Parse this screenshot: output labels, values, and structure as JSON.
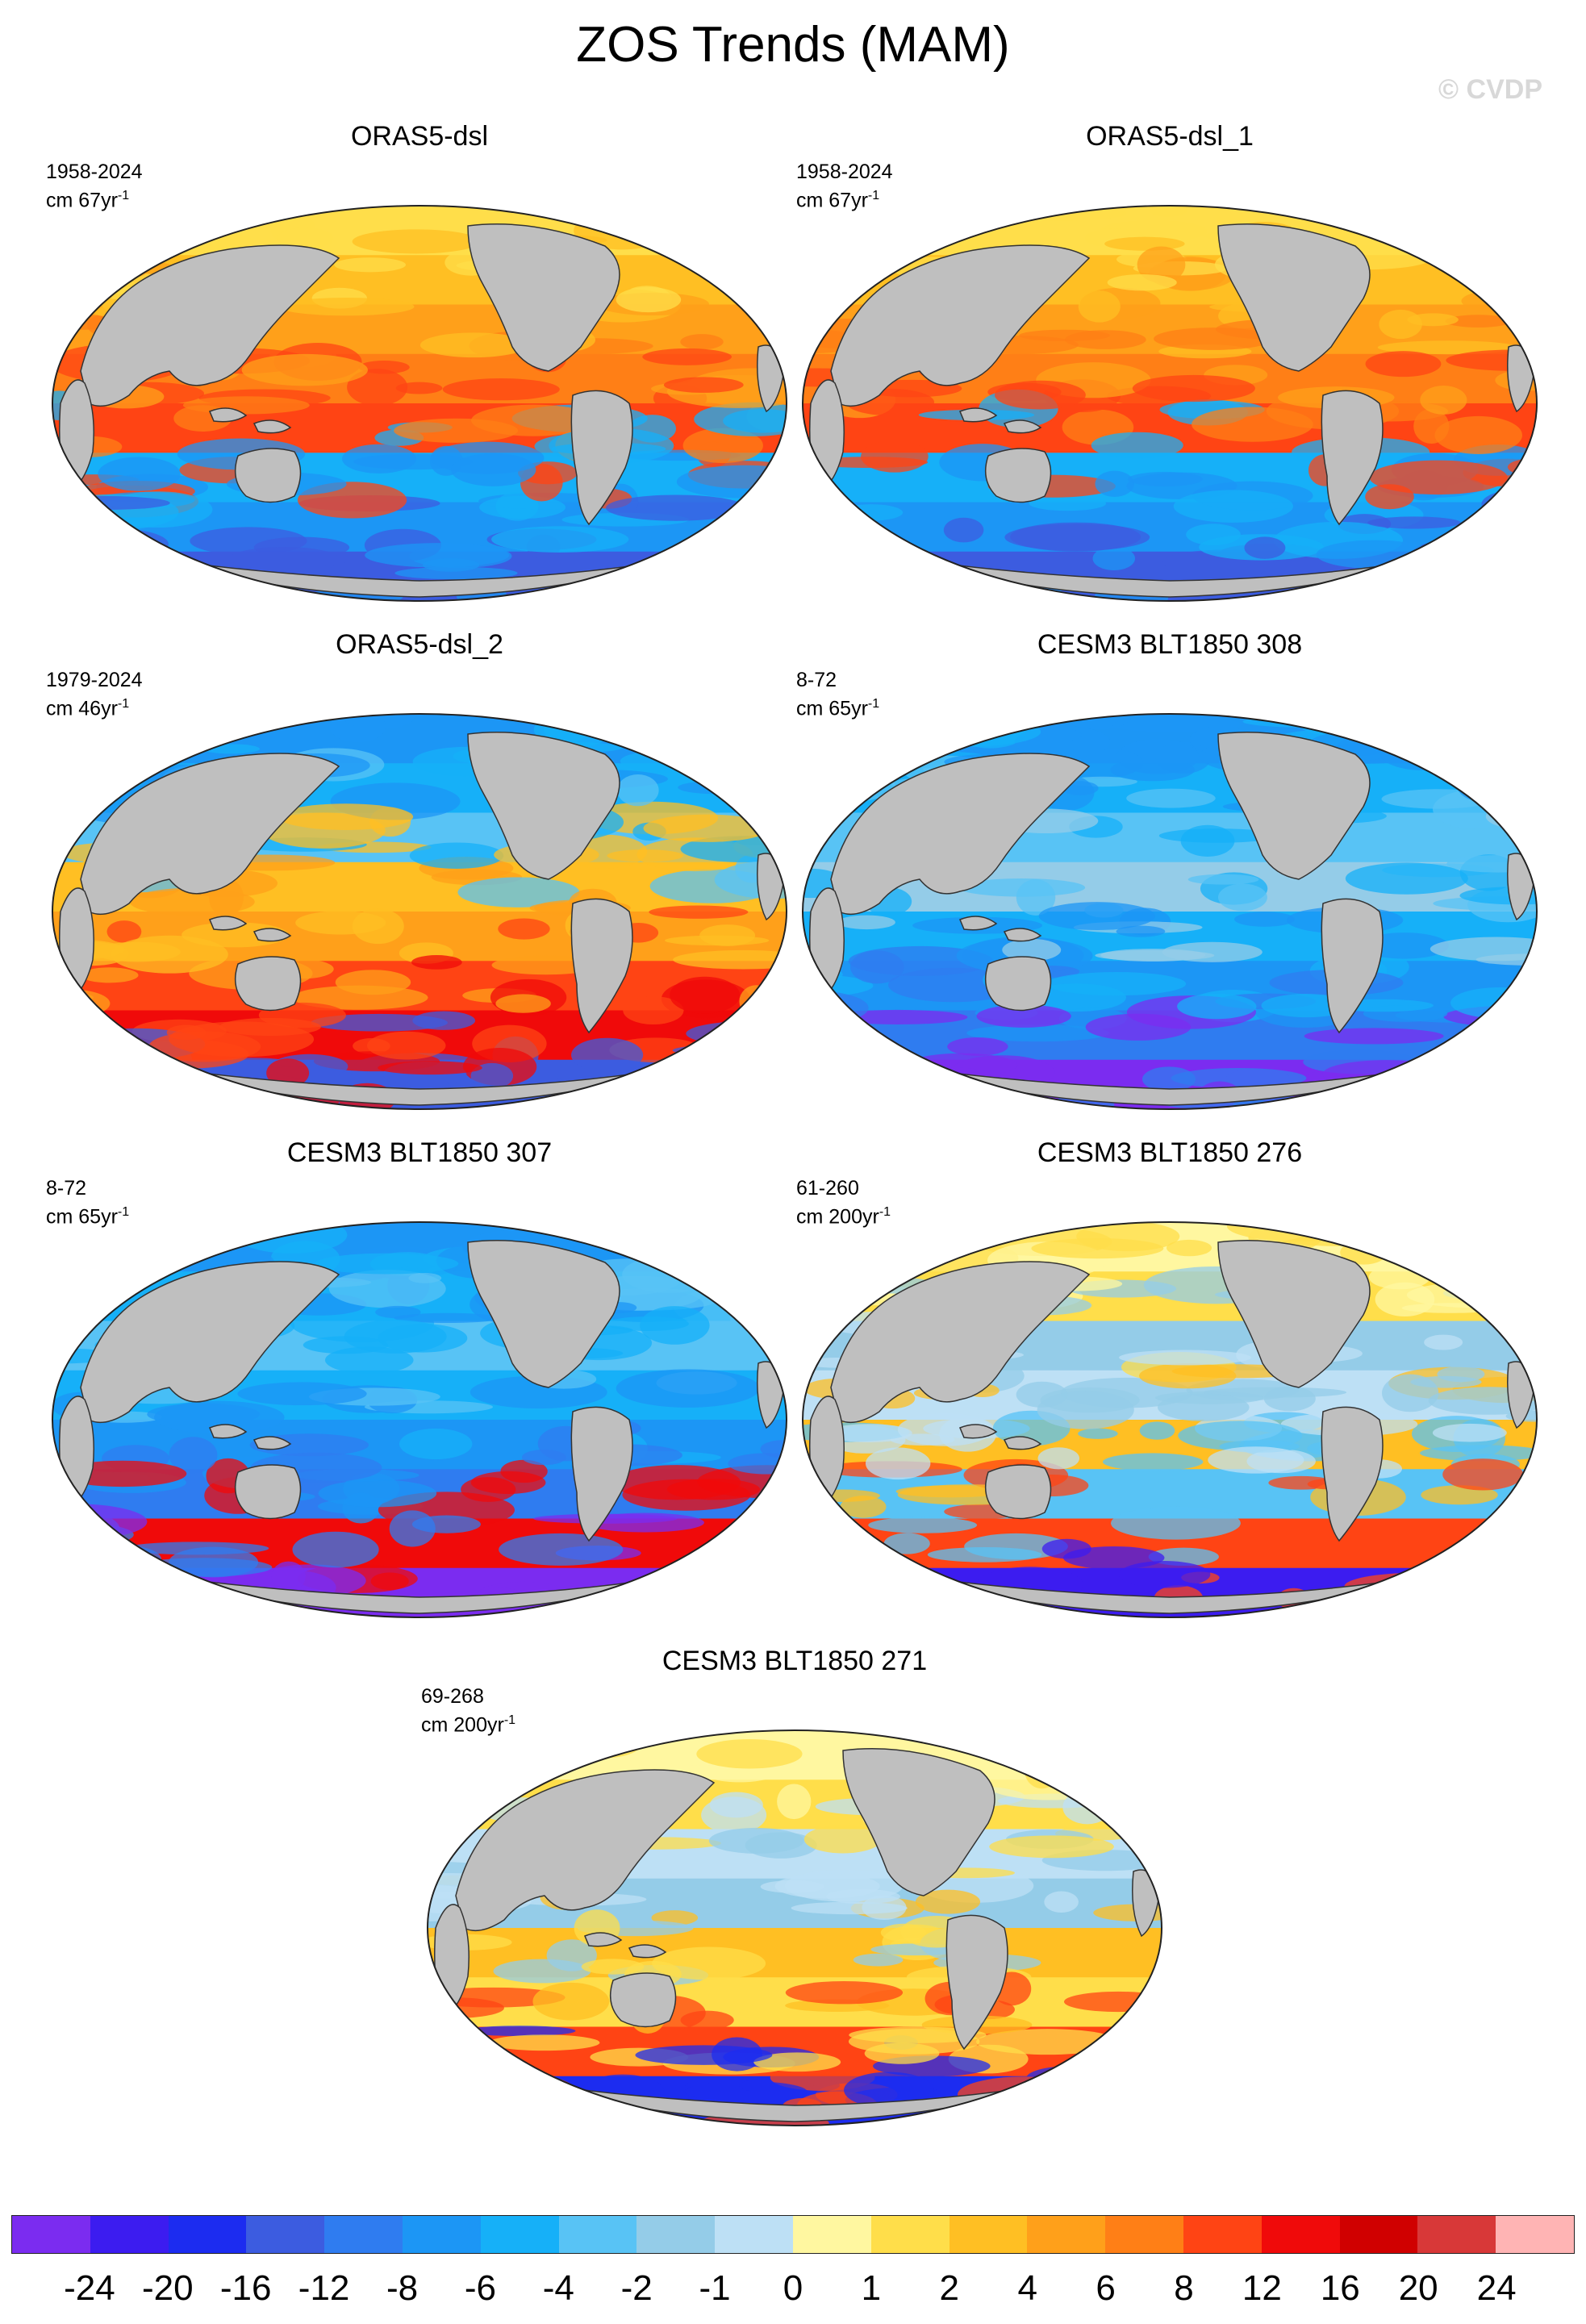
{
  "title": "ZOS Trends (MAM)",
  "watermark": "© CVDP",
  "colors": {
    "land": "#bfbfbf",
    "coast": "#333333",
    "colorbar": [
      "#7b2cf0",
      "#3c1cf0",
      "#1c2cf0",
      "#3c5ce0",
      "#2f7cf0",
      "#1c96f5",
      "#16b0f8",
      "#58c3f5",
      "#94cce8",
      "#bde0f5",
      "#fff7a0",
      "#ffde4a",
      "#ffbf23",
      "#ffa01a",
      "#ff7f16",
      "#ff4414",
      "#f00a0a",
      "#d00000",
      "#d83838",
      "#ffb4b4"
    ]
  },
  "colorbar_labels": [
    "-24",
    "-20",
    "-16",
    "-12",
    "-8",
    "-6",
    "-4",
    "-2",
    "-1",
    "0",
    "1",
    "2",
    "4",
    "6",
    "8",
    "12",
    "16",
    "20",
    "24"
  ],
  "panels": [
    {
      "title": "ORAS5-dsl",
      "years": "1958-2024",
      "units": "cm 67yr",
      "exp": "-1",
      "palette": [
        11,
        12,
        13,
        14,
        15,
        6,
        5,
        3
      ]
    },
    {
      "title": "ORAS5-dsl_1",
      "years": "1958-2024",
      "units": "cm 67yr",
      "exp": "-1",
      "palette": [
        11,
        12,
        13,
        14,
        15,
        6,
        5,
        3
      ]
    },
    {
      "title": "ORAS5-dsl_2",
      "years": "1979-2024",
      "units": "cm 46yr",
      "exp": "-1",
      "palette": [
        5,
        6,
        7,
        12,
        13,
        15,
        16,
        3
      ]
    },
    {
      "title": "CESM3 BLT1850 308",
      "years": "8-72",
      "units": "cm 65yr",
      "exp": "-1",
      "palette": [
        5,
        6,
        7,
        8,
        6,
        5,
        4,
        0
      ]
    },
    {
      "title": "CESM3 BLT1850 307",
      "years": "8-72",
      "units": "cm 65yr",
      "exp": "-1",
      "palette": [
        5,
        6,
        7,
        6,
        5,
        4,
        16,
        0
      ]
    },
    {
      "title": "CESM3 BLT1850 276",
      "years": "61-260",
      "units": "cm 200yr",
      "exp": "-1",
      "palette": [
        10,
        11,
        8,
        9,
        12,
        7,
        15,
        1
      ]
    },
    {
      "title": "CESM3 BLT1850 271",
      "years": "69-268",
      "units": "cm 200yr",
      "exp": "-1",
      "palette": [
        10,
        11,
        9,
        8,
        12,
        11,
        15,
        2
      ]
    }
  ]
}
